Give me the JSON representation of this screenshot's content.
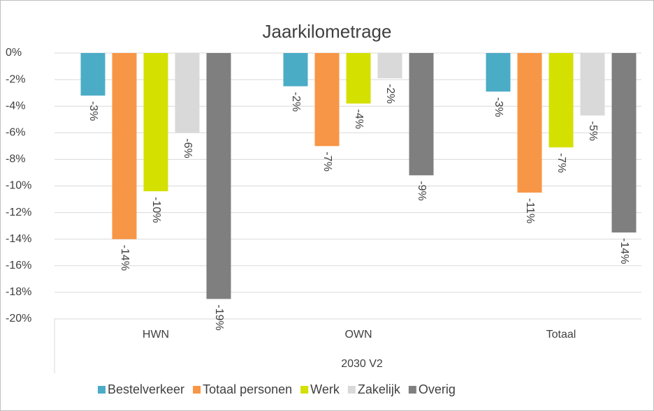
{
  "chart_data": {
    "type": "bar",
    "title": "Jaarkilometrage",
    "group_label": "2030 V2",
    "categories": [
      "HWN",
      "OWN",
      "Totaal"
    ],
    "series": [
      {
        "name": "Bestelverkeer",
        "color": "#4bacc6",
        "values": [
          -3.2,
          -2.5,
          -2.9
        ],
        "value_labels": [
          "-3%",
          "-2%",
          "-3%"
        ]
      },
      {
        "name": "Totaal personen",
        "color": "#f79646",
        "values": [
          -14.0,
          -7.0,
          -10.5
        ],
        "value_labels": [
          "-14%",
          "-7%",
          "-11%"
        ]
      },
      {
        "name": "Werk",
        "color": "#d4e000",
        "values": [
          -10.4,
          -3.8,
          -7.1
        ],
        "value_labels": [
          "-10%",
          "-4%",
          "-7%"
        ]
      },
      {
        "name": "Zakelijk",
        "color": "#d9d9d9",
        "values": [
          -6.0,
          -1.9,
          -4.7
        ],
        "value_labels": [
          "-6%",
          "-2%",
          "-5%"
        ]
      },
      {
        "name": "Overig",
        "color": "#7f7f7f",
        "values": [
          -18.5,
          -9.2,
          -13.5
        ],
        "value_labels": [
          "-19%",
          "-9%",
          "-14%"
        ]
      }
    ],
    "ylim": [
      -20,
      0
    ],
    "yticks": [
      {
        "value": 0,
        "label": "0%"
      },
      {
        "value": -2,
        "label": "-2%"
      },
      {
        "value": -4,
        "label": "-4%"
      },
      {
        "value": -6,
        "label": "-6%"
      },
      {
        "value": -8,
        "label": "-8%"
      },
      {
        "value": -10,
        "label": "-10%"
      },
      {
        "value": -12,
        "label": "-12%"
      },
      {
        "value": -14,
        "label": "-14%"
      },
      {
        "value": -16,
        "label": "-16%"
      },
      {
        "value": -18,
        "label": "-18%"
      },
      {
        "value": -20,
        "label": "-20%"
      }
    ],
    "grid": true
  }
}
